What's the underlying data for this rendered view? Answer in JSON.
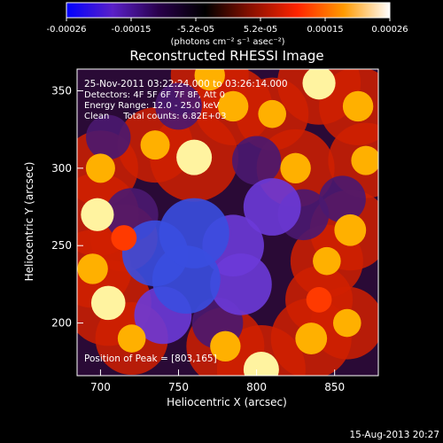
{
  "chart_data": {
    "type": "heatmap",
    "title": "Reconstructed RHESSI Image",
    "xlabel": "Heliocentric X (arcsec)",
    "ylabel": "Heliocentric Y (arcsec)",
    "xlim": [
      685,
      878
    ],
    "ylim": [
      166,
      364
    ],
    "x_ticks": [
      700,
      750,
      800,
      850
    ],
    "y_ticks": [
      200,
      250,
      300,
      350
    ],
    "colorbar": {
      "ticks": [
        "-0.00026",
        "-0.00015",
        "-5.2e-05",
        "5.2e-05",
        "0.00015",
        "0.00026"
      ],
      "min": -0.00026,
      "max": 0.00026,
      "unit_label": "(photons cm⁻² s⁻¹ asec⁻²)",
      "colors": [
        "#0000ff",
        "#5a20c8",
        "#28004a",
        "#000000",
        "#8a1000",
        "#ff2400",
        "#ff9a00",
        "#ffffff"
      ]
    },
    "annotations": [
      "25-Nov-2011 03:22:24.000 to 03:26:14.000",
      "Detectors: 4F 5F 6F 7F 8F, Att 0",
      "Energy Range: 12.0 - 25.0 keV",
      "Clean     Total counts: 6.82E+03"
    ],
    "peak_label": "Position of Peak = [803,165]",
    "footer_timestamp": "15-Aug-2013 20:27",
    "blobs": [
      {
        "x": 803,
        "y": 170,
        "value": 1.0
      },
      {
        "x": 780,
        "y": 185,
        "value": 0.8
      },
      {
        "x": 835,
        "y": 190,
        "value": 0.85
      },
      {
        "x": 858,
        "y": 200,
        "value": 0.7
      },
      {
        "x": 705,
        "y": 213,
        "value": 0.95
      },
      {
        "x": 695,
        "y": 235,
        "value": 0.8
      },
      {
        "x": 720,
        "y": 190,
        "value": 0.7
      },
      {
        "x": 698,
        "y": 270,
        "value": 0.9
      },
      {
        "x": 715,
        "y": 255,
        "value": 0.6
      },
      {
        "x": 700,
        "y": 300,
        "value": 0.75
      },
      {
        "x": 735,
        "y": 315,
        "value": 0.75
      },
      {
        "x": 760,
        "y": 307,
        "value": 1.0
      },
      {
        "x": 785,
        "y": 340,
        "value": 0.8
      },
      {
        "x": 810,
        "y": 335,
        "value": 0.7
      },
      {
        "x": 840,
        "y": 355,
        "value": 0.9
      },
      {
        "x": 865,
        "y": 340,
        "value": 0.8
      },
      {
        "x": 870,
        "y": 305,
        "value": 0.75
      },
      {
        "x": 860,
        "y": 260,
        "value": 0.85
      },
      {
        "x": 845,
        "y": 240,
        "value": 0.7
      },
      {
        "x": 825,
        "y": 300,
        "value": 0.8
      },
      {
        "x": 770,
        "y": 360,
        "value": 0.8
      },
      {
        "x": 840,
        "y": 215,
        "value": 0.6
      },
      {
        "x": 760,
        "y": 258,
        "value": -0.9
      },
      {
        "x": 735,
        "y": 245,
        "value": -0.8
      },
      {
        "x": 755,
        "y": 228,
        "value": -0.85
      },
      {
        "x": 785,
        "y": 250,
        "value": -0.7
      },
      {
        "x": 790,
        "y": 225,
        "value": -0.7
      },
      {
        "x": 740,
        "y": 205,
        "value": -0.6
      },
      {
        "x": 810,
        "y": 275,
        "value": -0.6
      },
      {
        "x": 830,
        "y": 270,
        "value": -0.45
      },
      {
        "x": 720,
        "y": 270,
        "value": -0.5
      },
      {
        "x": 800,
        "y": 305,
        "value": -0.4
      },
      {
        "x": 775,
        "y": 200,
        "value": -0.45
      },
      {
        "x": 705,
        "y": 320,
        "value": -0.3
      },
      {
        "x": 750,
        "y": 340,
        "value": -0.35
      },
      {
        "x": 855,
        "y": 280,
        "value": -0.35
      }
    ]
  }
}
